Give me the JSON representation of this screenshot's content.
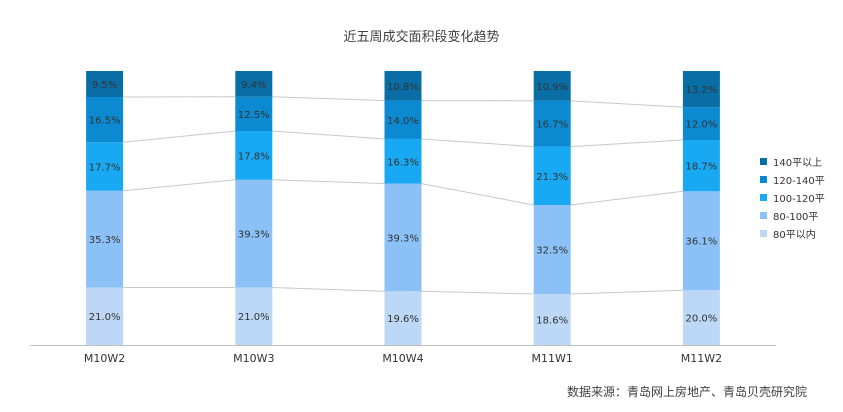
{
  "chart_data": {
    "type": "bar",
    "stacked": "percent",
    "title": "近五周成交面积段变化趋势",
    "categories": [
      "M10W2",
      "M10W3",
      "M10W4",
      "M11W1",
      "M11W2"
    ],
    "series": [
      {
        "name": "80平以内",
        "color": "#bdd7f6",
        "values": [
          21.0,
          21.0,
          19.6,
          18.6,
          20.0
        ],
        "labels": [
          "21.0%",
          "21.0%",
          "19.6%",
          "18.6%",
          "20.0%"
        ]
      },
      {
        "name": "80-100平",
        "color": "#8bc1f7",
        "values": [
          35.3,
          39.3,
          39.3,
          32.5,
          36.1
        ],
        "labels": [
          "35.3%",
          "39.3%",
          "39.3%",
          "32.5%",
          "36.1%"
        ]
      },
      {
        "name": "100-120平",
        "color": "#19a8f2",
        "values": [
          17.7,
          17.8,
          16.3,
          21.3,
          18.7
        ],
        "labels": [
          "17.7%",
          "17.8%",
          "16.3%",
          "21.3%",
          "18.7%"
        ]
      },
      {
        "name": "120-140平",
        "color": "#0b8ad2",
        "values": [
          16.5,
          12.5,
          14.0,
          16.7,
          12.0
        ],
        "labels": [
          "16.5%",
          "12.5%",
          "14.0%",
          "16.7%",
          "12.0%"
        ]
      },
      {
        "name": "140平以上",
        "color": "#0a6ea6",
        "values": [
          9.5,
          9.4,
          10.8,
          10.9,
          13.2
        ],
        "labels": [
          "9.5%",
          "9.4%",
          "10.8%",
          "10.9%",
          "13.2%"
        ]
      }
    ],
    "ylim": [
      0,
      100
    ],
    "legend_position": "right",
    "grid": false,
    "series_lines": true
  },
  "source_note": "数据来源：青岛网上房地产、青岛贝壳研究院"
}
